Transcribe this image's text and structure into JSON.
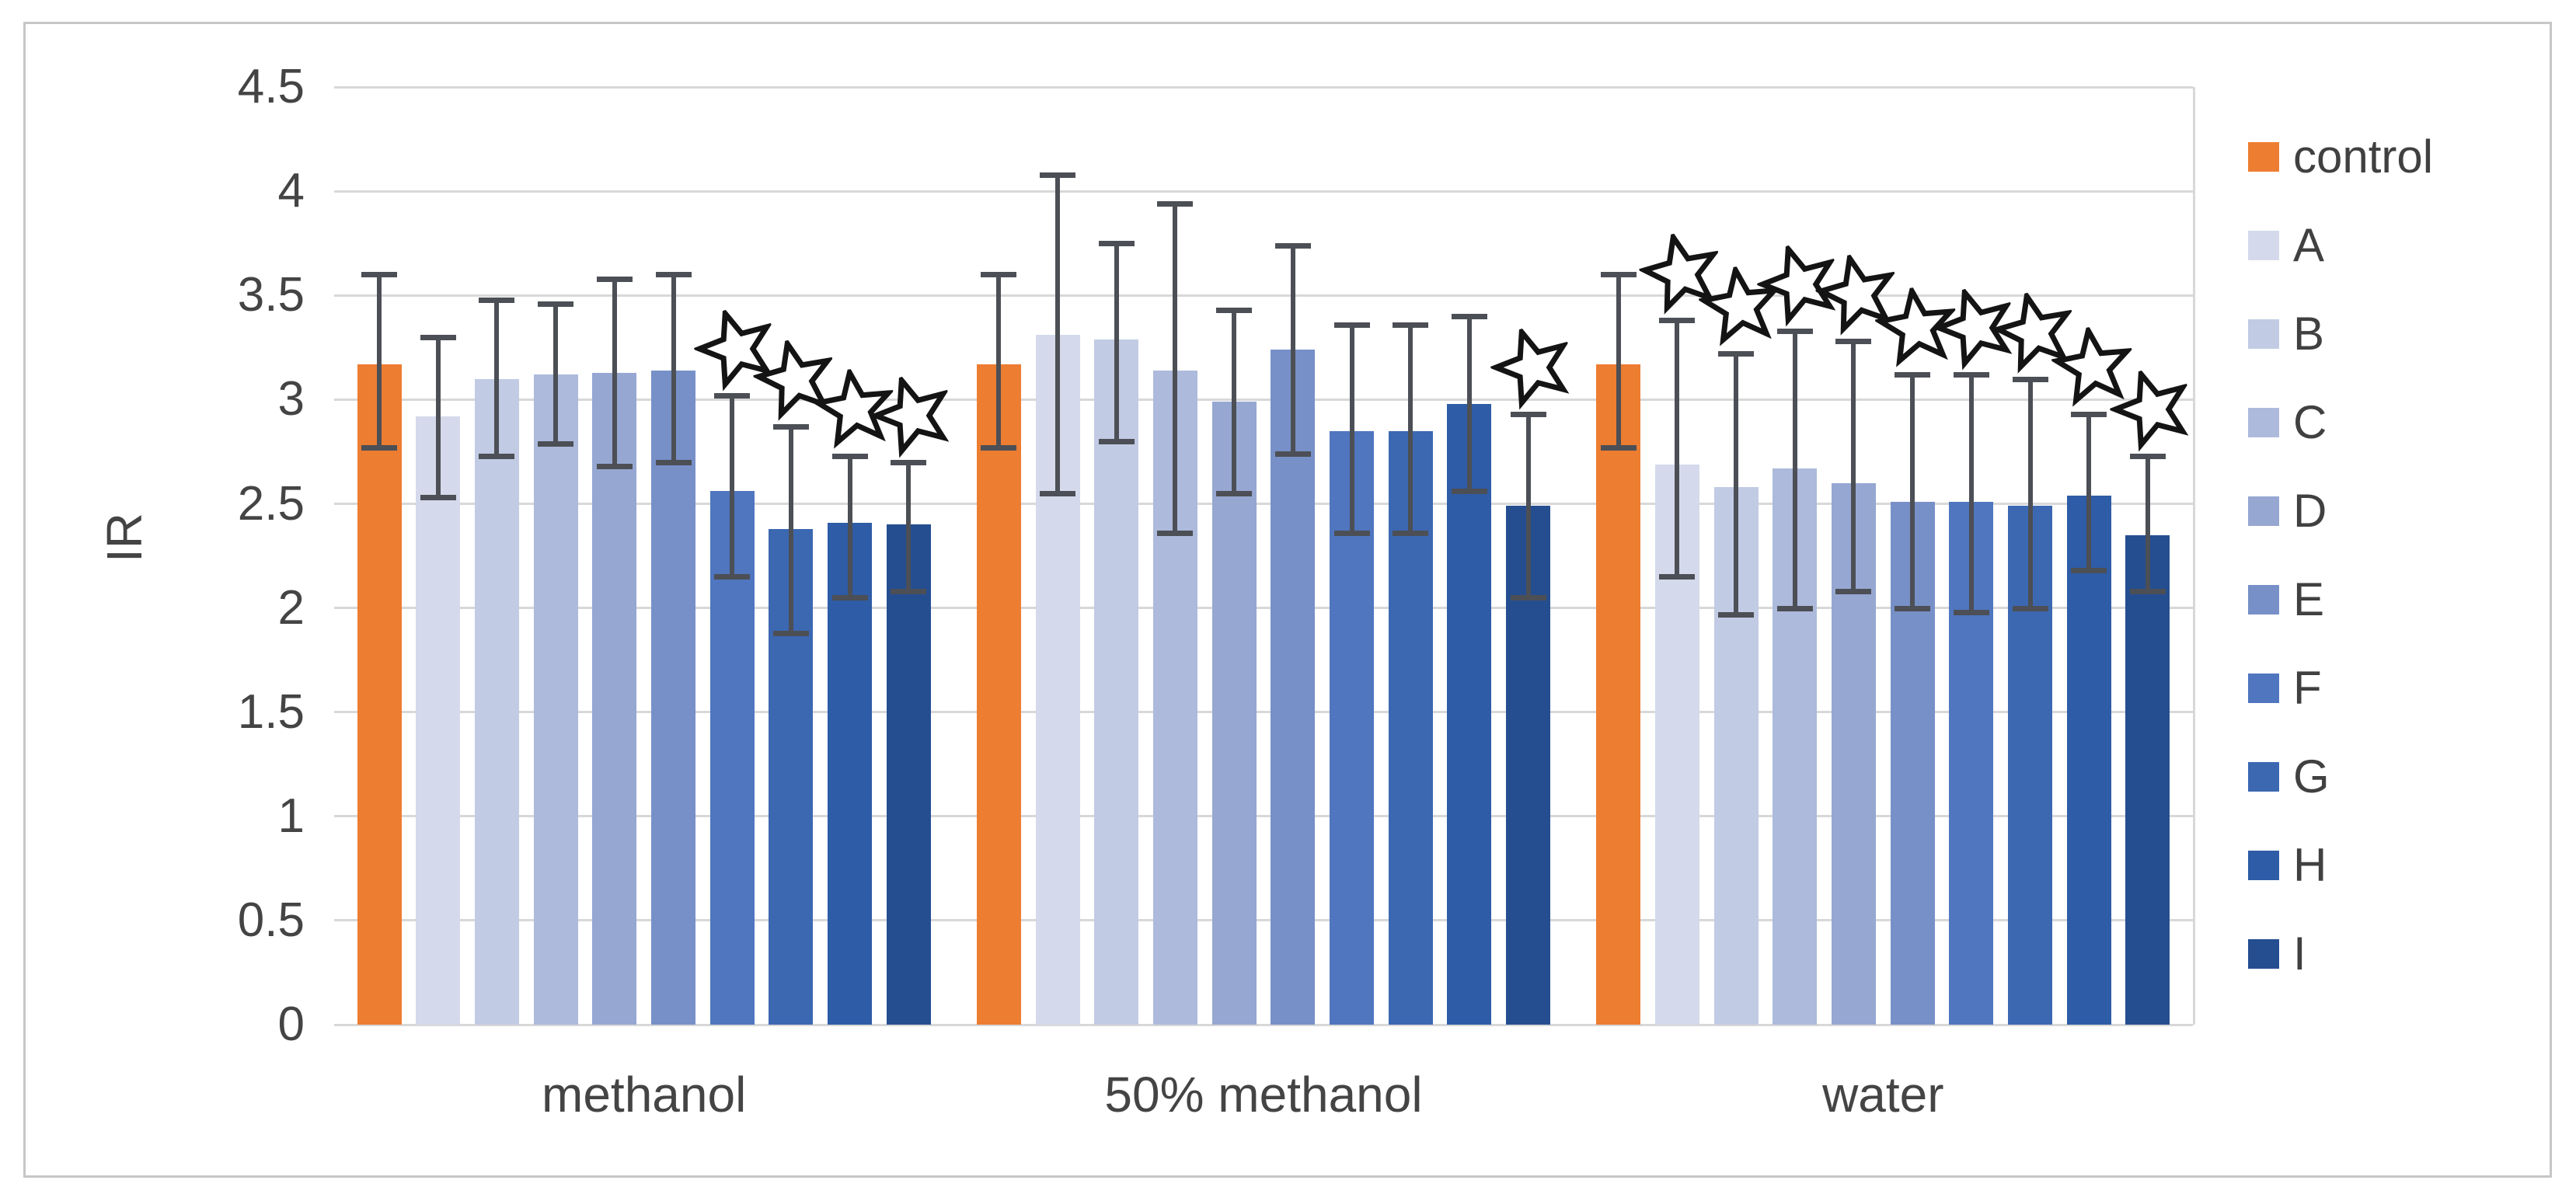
{
  "figure": {
    "type_note": "grouped bar chart with error bars and open-star significance markers",
    "border_color": "#c6c6c6",
    "gridline_color": "#d8d8d8",
    "errorbar_color": "#4c4f55",
    "text_color": "#444444",
    "star_marker": "open-star-icon"
  },
  "chart_data": {
    "type": "bar",
    "title": "",
    "xlabel": "",
    "ylabel": "IR",
    "ylim": [
      0,
      4.5
    ],
    "grid": true,
    "legend_position": "right",
    "yticks": [
      {
        "label": "4.5",
        "value": 4.5
      },
      {
        "label": "4",
        "value": 4.0
      },
      {
        "label": "3.5",
        "value": 3.5
      },
      {
        "label": "3",
        "value": 3.0
      },
      {
        "label": "2.5",
        "value": 2.5
      },
      {
        "label": "2",
        "value": 2.0
      },
      {
        "label": "1.5",
        "value": 1.5
      },
      {
        "label": "1",
        "value": 1.0
      },
      {
        "label": "0.5",
        "value": 0.5
      },
      {
        "label": "0",
        "value": 0.0
      }
    ],
    "categories": [
      "methanol",
      "50% methanol",
      "water"
    ],
    "series": [
      {
        "name": "control",
        "color": "#ED7D31",
        "values": [
          3.17,
          3.17,
          3.17
        ],
        "err_top": [
          3.6,
          3.6,
          3.6
        ],
        "err_bot": [
          2.77,
          2.77,
          2.77
        ],
        "star": [
          false,
          false,
          false
        ]
      },
      {
        "name": "A",
        "color": "#D4DAEB",
        "values": [
          2.92,
          3.31,
          2.69
        ],
        "err_top": [
          3.3,
          4.08,
          3.38
        ],
        "err_bot": [
          2.53,
          2.55,
          2.15
        ],
        "star": [
          false,
          false,
          true
        ]
      },
      {
        "name": "B",
        "color": "#C2CBE4",
        "values": [
          3.1,
          3.29,
          2.58
        ],
        "err_top": [
          3.48,
          3.75,
          3.22
        ],
        "err_bot": [
          2.73,
          2.8,
          1.97
        ],
        "star": [
          false,
          false,
          true
        ]
      },
      {
        "name": "C",
        "color": "#ADBADC",
        "values": [
          3.12,
          3.14,
          2.67
        ],
        "err_top": [
          3.46,
          3.94,
          3.33
        ],
        "err_bot": [
          2.79,
          2.36,
          2.0
        ],
        "star": [
          false,
          false,
          true
        ]
      },
      {
        "name": "D",
        "color": "#96A7D2",
        "values": [
          3.13,
          2.99,
          2.6
        ],
        "err_top": [
          3.58,
          3.43,
          3.28
        ],
        "err_bot": [
          2.68,
          2.55,
          2.08
        ],
        "star": [
          false,
          false,
          true
        ]
      },
      {
        "name": "E",
        "color": "#7890C8",
        "values": [
          3.14,
          3.24,
          2.51
        ],
        "err_top": [
          3.6,
          3.74,
          3.12
        ],
        "err_bot": [
          2.7,
          2.74,
          2.0
        ],
        "star": [
          false,
          false,
          true
        ]
      },
      {
        "name": "F",
        "color": "#4F76BF",
        "values": [
          2.56,
          2.85,
          2.51
        ],
        "err_top": [
          3.02,
          3.36,
          3.12
        ],
        "err_bot": [
          2.15,
          2.36,
          1.98
        ],
        "star": [
          true,
          false,
          true
        ]
      },
      {
        "name": "G",
        "color": "#3C68B2",
        "values": [
          2.38,
          2.85,
          2.49
        ],
        "err_top": [
          2.87,
          3.36,
          3.1
        ],
        "err_bot": [
          1.88,
          2.36,
          2.0
        ],
        "star": [
          true,
          false,
          true
        ]
      },
      {
        "name": "H",
        "color": "#2E5CA6",
        "values": [
          2.41,
          2.98,
          2.54
        ],
        "err_top": [
          2.73,
          3.4,
          2.93
        ],
        "err_bot": [
          2.05,
          2.56,
          2.18
        ],
        "star": [
          true,
          false,
          true
        ]
      },
      {
        "name": "I",
        "color": "#254E91",
        "values": [
          2.4,
          2.49,
          2.35
        ],
        "err_top": [
          2.7,
          2.93,
          2.73
        ],
        "err_bot": [
          2.08,
          2.05,
          2.08
        ],
        "star": [
          true,
          true,
          true
        ]
      }
    ],
    "legend_entries": [
      "control",
      "A",
      "B",
      "C",
      "D",
      "E",
      "F",
      "G",
      "H",
      "I"
    ]
  }
}
